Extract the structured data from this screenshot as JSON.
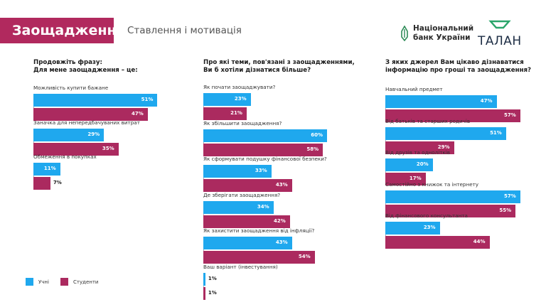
{
  "header": {
    "title": "Заощадження",
    "subtitle": "Ставлення і мотивація",
    "nbu_line1": "Національний",
    "nbu_line2": "банк України",
    "talan": "ТАЛАН"
  },
  "colors": {
    "pupils": "#1fa8ee",
    "students": "#ab2a5f",
    "accent": "#b1295e"
  },
  "legend": {
    "pupils": "Учні",
    "students": "Студенти"
  },
  "chart_data": [
    {
      "type": "bar",
      "title": [
        "Продовжіть фразу:",
        "Для мене заощадження – це:"
      ],
      "categories": [
        "Можливість купити бажане",
        "Заначка для непередбачуваних витрат",
        "Обмеження в покупках"
      ],
      "series": [
        {
          "name": "Учні",
          "values": [
            51,
            29,
            11
          ],
          "labels": [
            "51%",
            "29%",
            "11%"
          ]
        },
        {
          "name": "Студенти",
          "values": [
            47,
            35,
            7
          ],
          "labels": [
            "47%",
            "35%",
            "7%"
          ]
        }
      ]
    },
    {
      "type": "bar",
      "title": [
        "Про які теми, пов'язані з заощадженнями,",
        "Ви б хотіли дізнатися більше?"
      ],
      "categories": [
        "Як почати заощаджувати?",
        "Як збільшити заощадження?",
        "Як сформувати подушку фінансової безпеки?",
        "Де зберігати заощадження?",
        "Як захистити заощадження від інфляції?",
        "Ваш варіант (інвестування)"
      ],
      "series": [
        {
          "name": "Учні",
          "values": [
            23,
            60,
            33,
            34,
            43,
            1
          ],
          "labels": [
            "23%",
            "60%",
            "33%",
            "34%",
            "43%",
            "1%"
          ]
        },
        {
          "name": "Студенти",
          "values": [
            21,
            58,
            43,
            42,
            54,
            1
          ],
          "labels": [
            "21%",
            "58%",
            "43%",
            "42%",
            "54%",
            "1%"
          ]
        }
      ]
    },
    {
      "type": "bar",
      "title": [
        "З яких джерел Вам цікаво дізнаватися",
        "інформацію про гроші та заощадження?"
      ],
      "categories": [
        "Навчальний предмет",
        "Від батьків та старших родичів",
        "Від друзів та однолітків",
        "Самостійно з книжок та інтернету",
        "Від фінансового консультанта"
      ],
      "series": [
        {
          "name": "Учні",
          "values": [
            47,
            51,
            20,
            57,
            23
          ],
          "labels": [
            "47%",
            "51%",
            "20%",
            "57%",
            "23%"
          ]
        },
        {
          "name": "Студенти",
          "values": [
            57,
            29,
            17,
            55,
            44
          ],
          "labels": [
            "57%",
            "29%",
            "17%",
            "55%",
            "44%"
          ]
        }
      ]
    }
  ]
}
